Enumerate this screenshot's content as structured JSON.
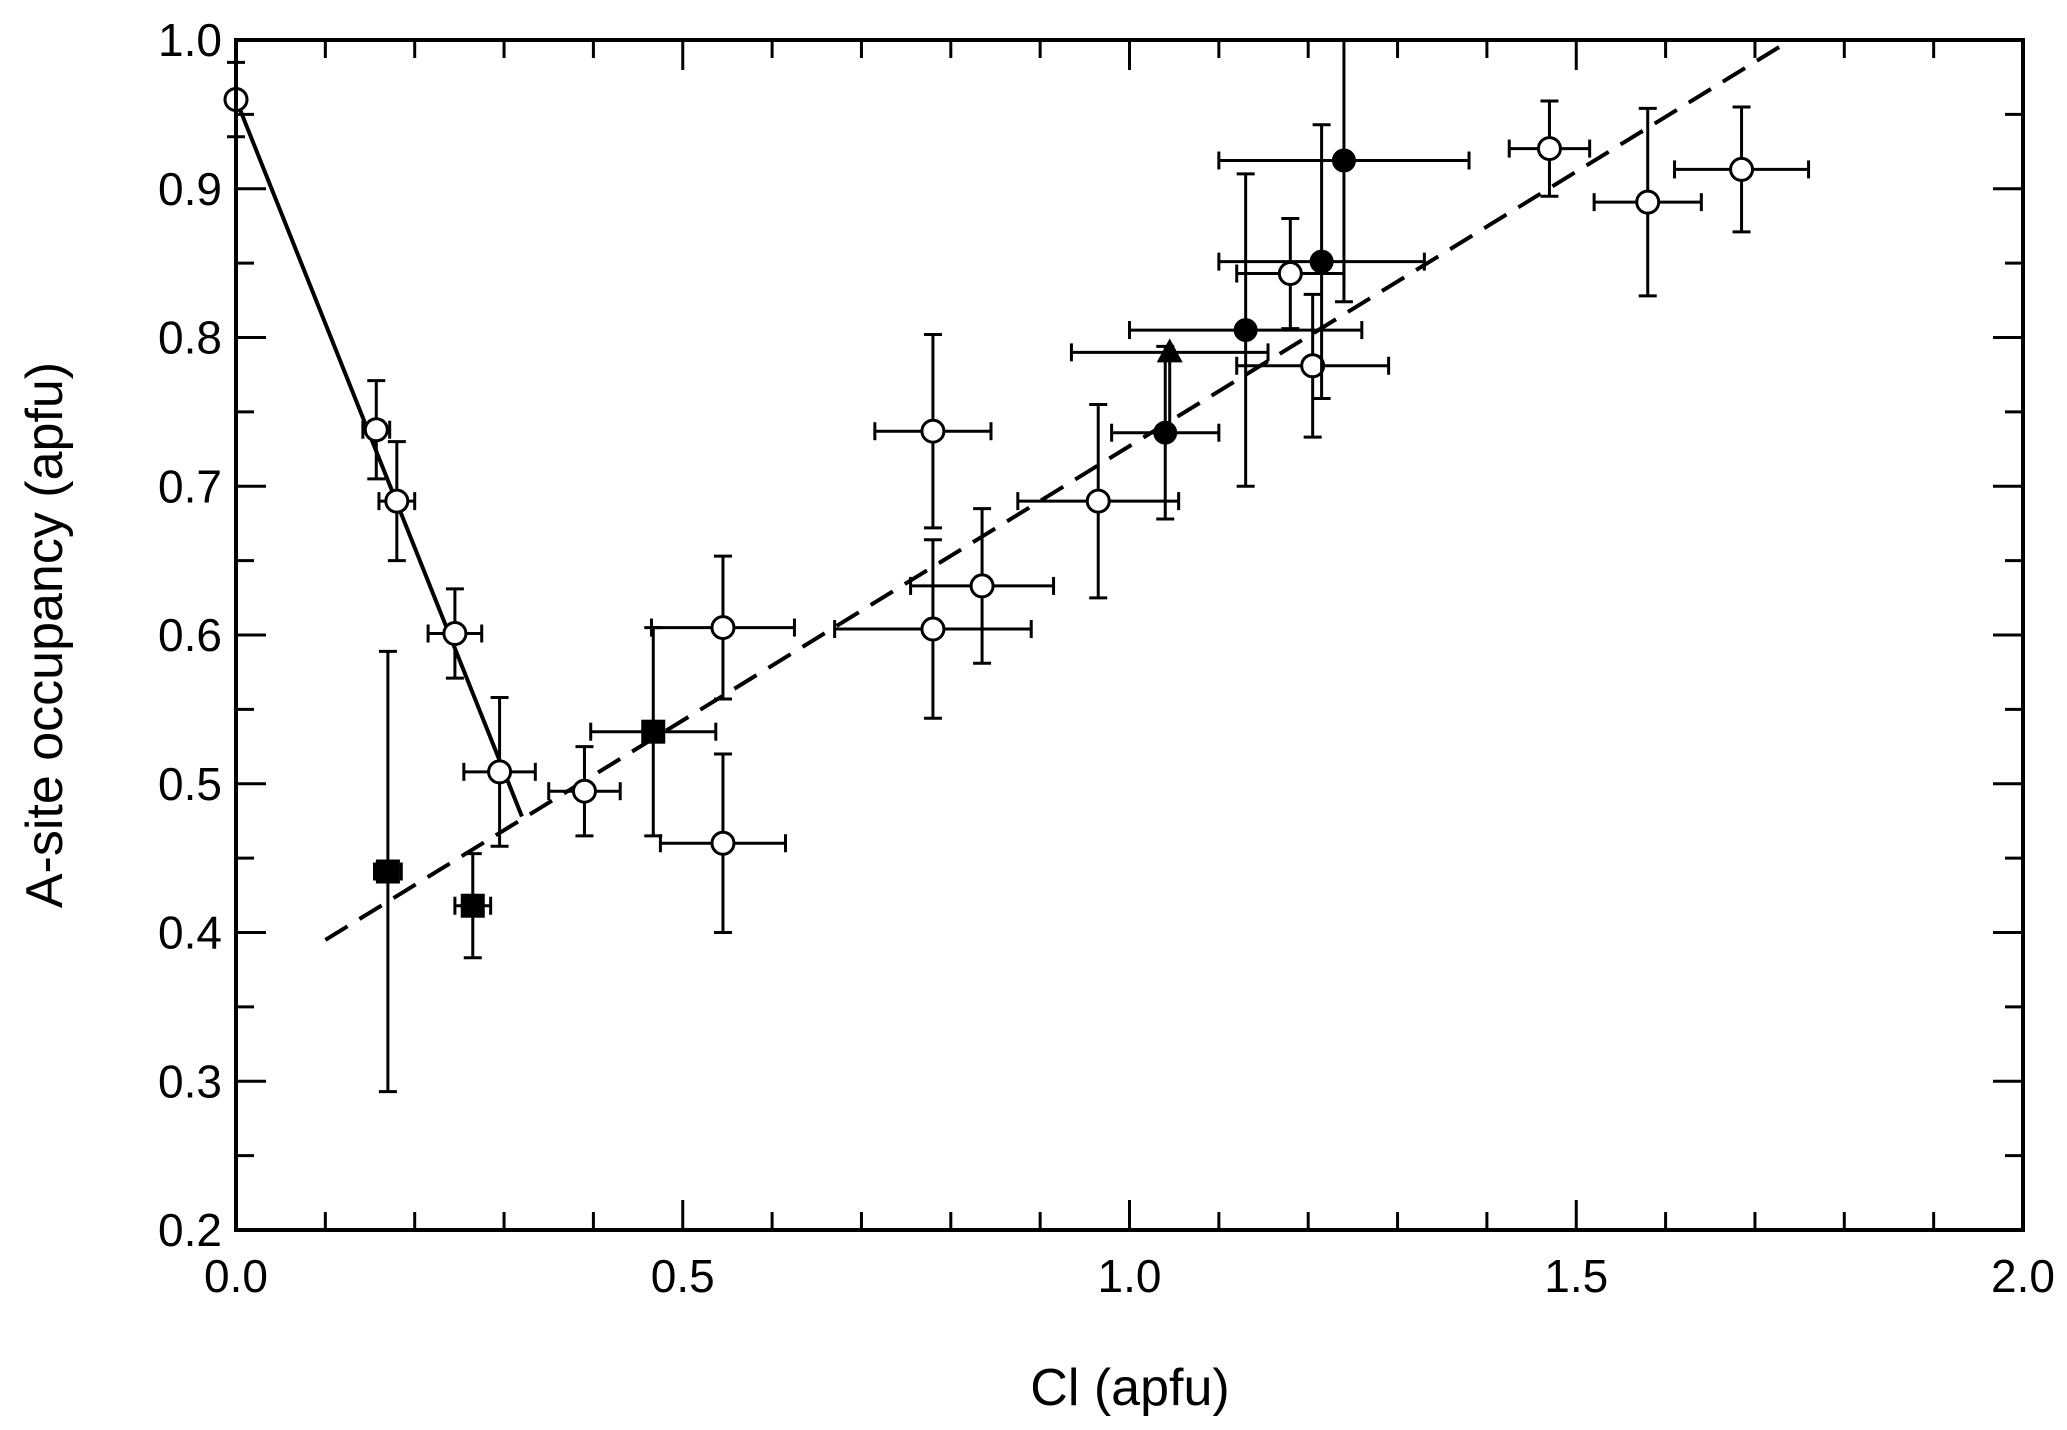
{
  "chart_data": {
    "type": "scatter",
    "xlabel": "Cl (apfu)",
    "ylabel": "A-site occupancy (apfu)",
    "xlim": [
      0.0,
      2.0
    ],
    "ylim": [
      0.2,
      1.0
    ],
    "xticks": [
      "0.0",
      "0.5",
      "1.0",
      "1.5",
      "2.0"
    ],
    "yticks": [
      "0.2",
      "0.3",
      "0.4",
      "0.5",
      "0.6",
      "0.7",
      "0.8",
      "0.9",
      "1.0"
    ],
    "xtick_values": [
      0,
      0.5,
      1.0,
      1.5,
      2.0
    ],
    "ytick_values": [
      0.2,
      0.3,
      0.4,
      0.5,
      0.6,
      0.7,
      0.8,
      0.9,
      1.0
    ],
    "grid": false,
    "series": [
      {
        "name": "open-circles",
        "marker": "open-circle",
        "points": [
          {
            "x": 0.0,
            "y": 0.96,
            "xerr": 0,
            "yerr": 0.025
          },
          {
            "x": 0.157,
            "y": 0.738,
            "xerr": 0.015,
            "yerr": 0.033
          },
          {
            "x": 0.18,
            "y": 0.69,
            "xerr": 0.02,
            "yerr": 0.04
          },
          {
            "x": 0.245,
            "y": 0.601,
            "xerr": 0.03,
            "yerr": 0.03
          },
          {
            "x": 0.295,
            "y": 0.508,
            "xerr": 0.04,
            "yerr": 0.05
          },
          {
            "x": 0.39,
            "y": 0.495,
            "xerr": 0.04,
            "yerr": 0.03
          },
          {
            "x": 0.545,
            "y": 0.605,
            "xerr": 0.08,
            "yerr": 0.048
          },
          {
            "x": 0.545,
            "y": 0.46,
            "xerr": 0.07,
            "yerr": 0.06
          },
          {
            "x": 0.78,
            "y": 0.737,
            "xerr": 0.065,
            "yerr": 0.065
          },
          {
            "x": 0.78,
            "y": 0.604,
            "xerr": 0.11,
            "yerr": 0.06
          },
          {
            "x": 0.835,
            "y": 0.633,
            "xerr": 0.08,
            "yerr": 0.052
          },
          {
            "x": 0.965,
            "y": 0.69,
            "xerr": 0.09,
            "yerr": 0.065
          },
          {
            "x": 1.18,
            "y": 0.843,
            "xerr": 0.06,
            "yerr": 0.037
          },
          {
            "x": 1.205,
            "y": 0.781,
            "xerr": 0.085,
            "yerr": 0.048
          },
          {
            "x": 1.47,
            "y": 0.927,
            "xerr": 0.045,
            "yerr": 0.032
          },
          {
            "x": 1.58,
            "y": 0.891,
            "xerr": 0.06,
            "yerr": 0.063
          },
          {
            "x": 1.685,
            "y": 0.913,
            "xerr": 0.075,
            "yerr": 0.042
          }
        ]
      },
      {
        "name": "filled-circles",
        "marker": "filled-circle",
        "points": [
          {
            "x": 1.04,
            "y": 0.736,
            "xerr": 0.06,
            "yerr": 0.058
          },
          {
            "x": 1.13,
            "y": 0.805,
            "xerr": 0.13,
            "yerr": 0.105
          },
          {
            "x": 1.215,
            "y": 0.851,
            "xerr": 0.115,
            "yerr": 0.092
          },
          {
            "x": 1.24,
            "y": 0.919,
            "xerr": 0.14,
            "yerr": 0.095
          }
        ]
      },
      {
        "name": "filled-triangle",
        "marker": "filled-triangle",
        "points": [
          {
            "x": 1.045,
            "y": 0.79,
            "xerr": 0.11,
            "yerr": 0
          }
        ]
      },
      {
        "name": "filled-squares",
        "marker": "filled-square",
        "points": [
          {
            "x": 0.17,
            "y": 0.441,
            "xerr": 0.015,
            "yerr": 0.148
          },
          {
            "x": 0.265,
            "y": 0.418,
            "xerr": 0.02,
            "yerr": 0.035
          },
          {
            "x": 0.467,
            "y": 0.535,
            "xerr": 0.07,
            "yerr": 0.07
          }
        ]
      }
    ],
    "lines": [
      {
        "name": "solid-trend",
        "style": "solid",
        "x": [
          0.0,
          0.32
        ],
        "y": [
          0.96,
          0.478
        ]
      },
      {
        "name": "dashed-trend",
        "style": "dashed",
        "x": [
          0.1,
          1.74
        ],
        "y": [
          0.395,
          1.0
        ]
      }
    ]
  }
}
